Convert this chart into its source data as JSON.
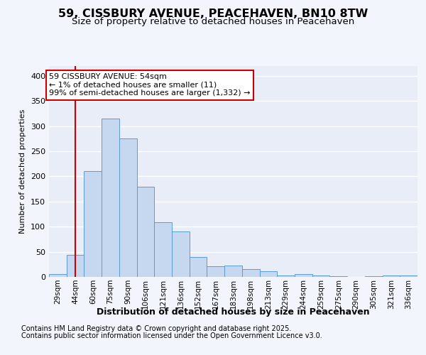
{
  "title": "59, CISSBURY AVENUE, PEACEHAVEN, BN10 8TW",
  "subtitle": "Size of property relative to detached houses in Peacehaven",
  "xlabel": "Distribution of detached houses by size in Peacehaven",
  "ylabel": "Number of detached properties",
  "categories": [
    "29sqm",
    "44sqm",
    "60sqm",
    "75sqm",
    "90sqm",
    "106sqm",
    "121sqm",
    "136sqm",
    "152sqm",
    "167sqm",
    "183sqm",
    "198sqm",
    "213sqm",
    "229sqm",
    "244sqm",
    "259sqm",
    "275sqm",
    "290sqm",
    "305sqm",
    "321sqm",
    "336sqm"
  ],
  "values": [
    5,
    44,
    211,
    315,
    275,
    180,
    109,
    91,
    39,
    21,
    23,
    15,
    12,
    3,
    6,
    3,
    1,
    0,
    1,
    3,
    3
  ],
  "bar_color": "#c5d8f0",
  "bar_edge_color": "#5b9bd5",
  "vline_color": "#cc0000",
  "vline_pos": 1.5,
  "annotation_text": "59 CISSBURY AVENUE: 54sqm\n← 1% of detached houses are smaller (11)\n99% of semi-detached houses are larger (1,332) →",
  "annotation_box_color": "#ffffff",
  "annotation_box_edge": "#cc0000",
  "footer_line1": "Contains HM Land Registry data © Crown copyright and database right 2025.",
  "footer_line2": "Contains public sector information licensed under the Open Government Licence v3.0.",
  "ylim": [
    0,
    420
  ],
  "yticks": [
    0,
    50,
    100,
    150,
    200,
    250,
    300,
    350,
    400
  ],
  "background_color": "#f2f5fb",
  "plot_background": "#e8edf8",
  "grid_color": "#ffffff",
  "title_fontsize": 11.5,
  "subtitle_fontsize": 9.5,
  "ylabel_fontsize": 8,
  "xlabel_fontsize": 9,
  "tick_fontsize": 7.5,
  "ann_fontsize": 8,
  "footer_fontsize": 7
}
